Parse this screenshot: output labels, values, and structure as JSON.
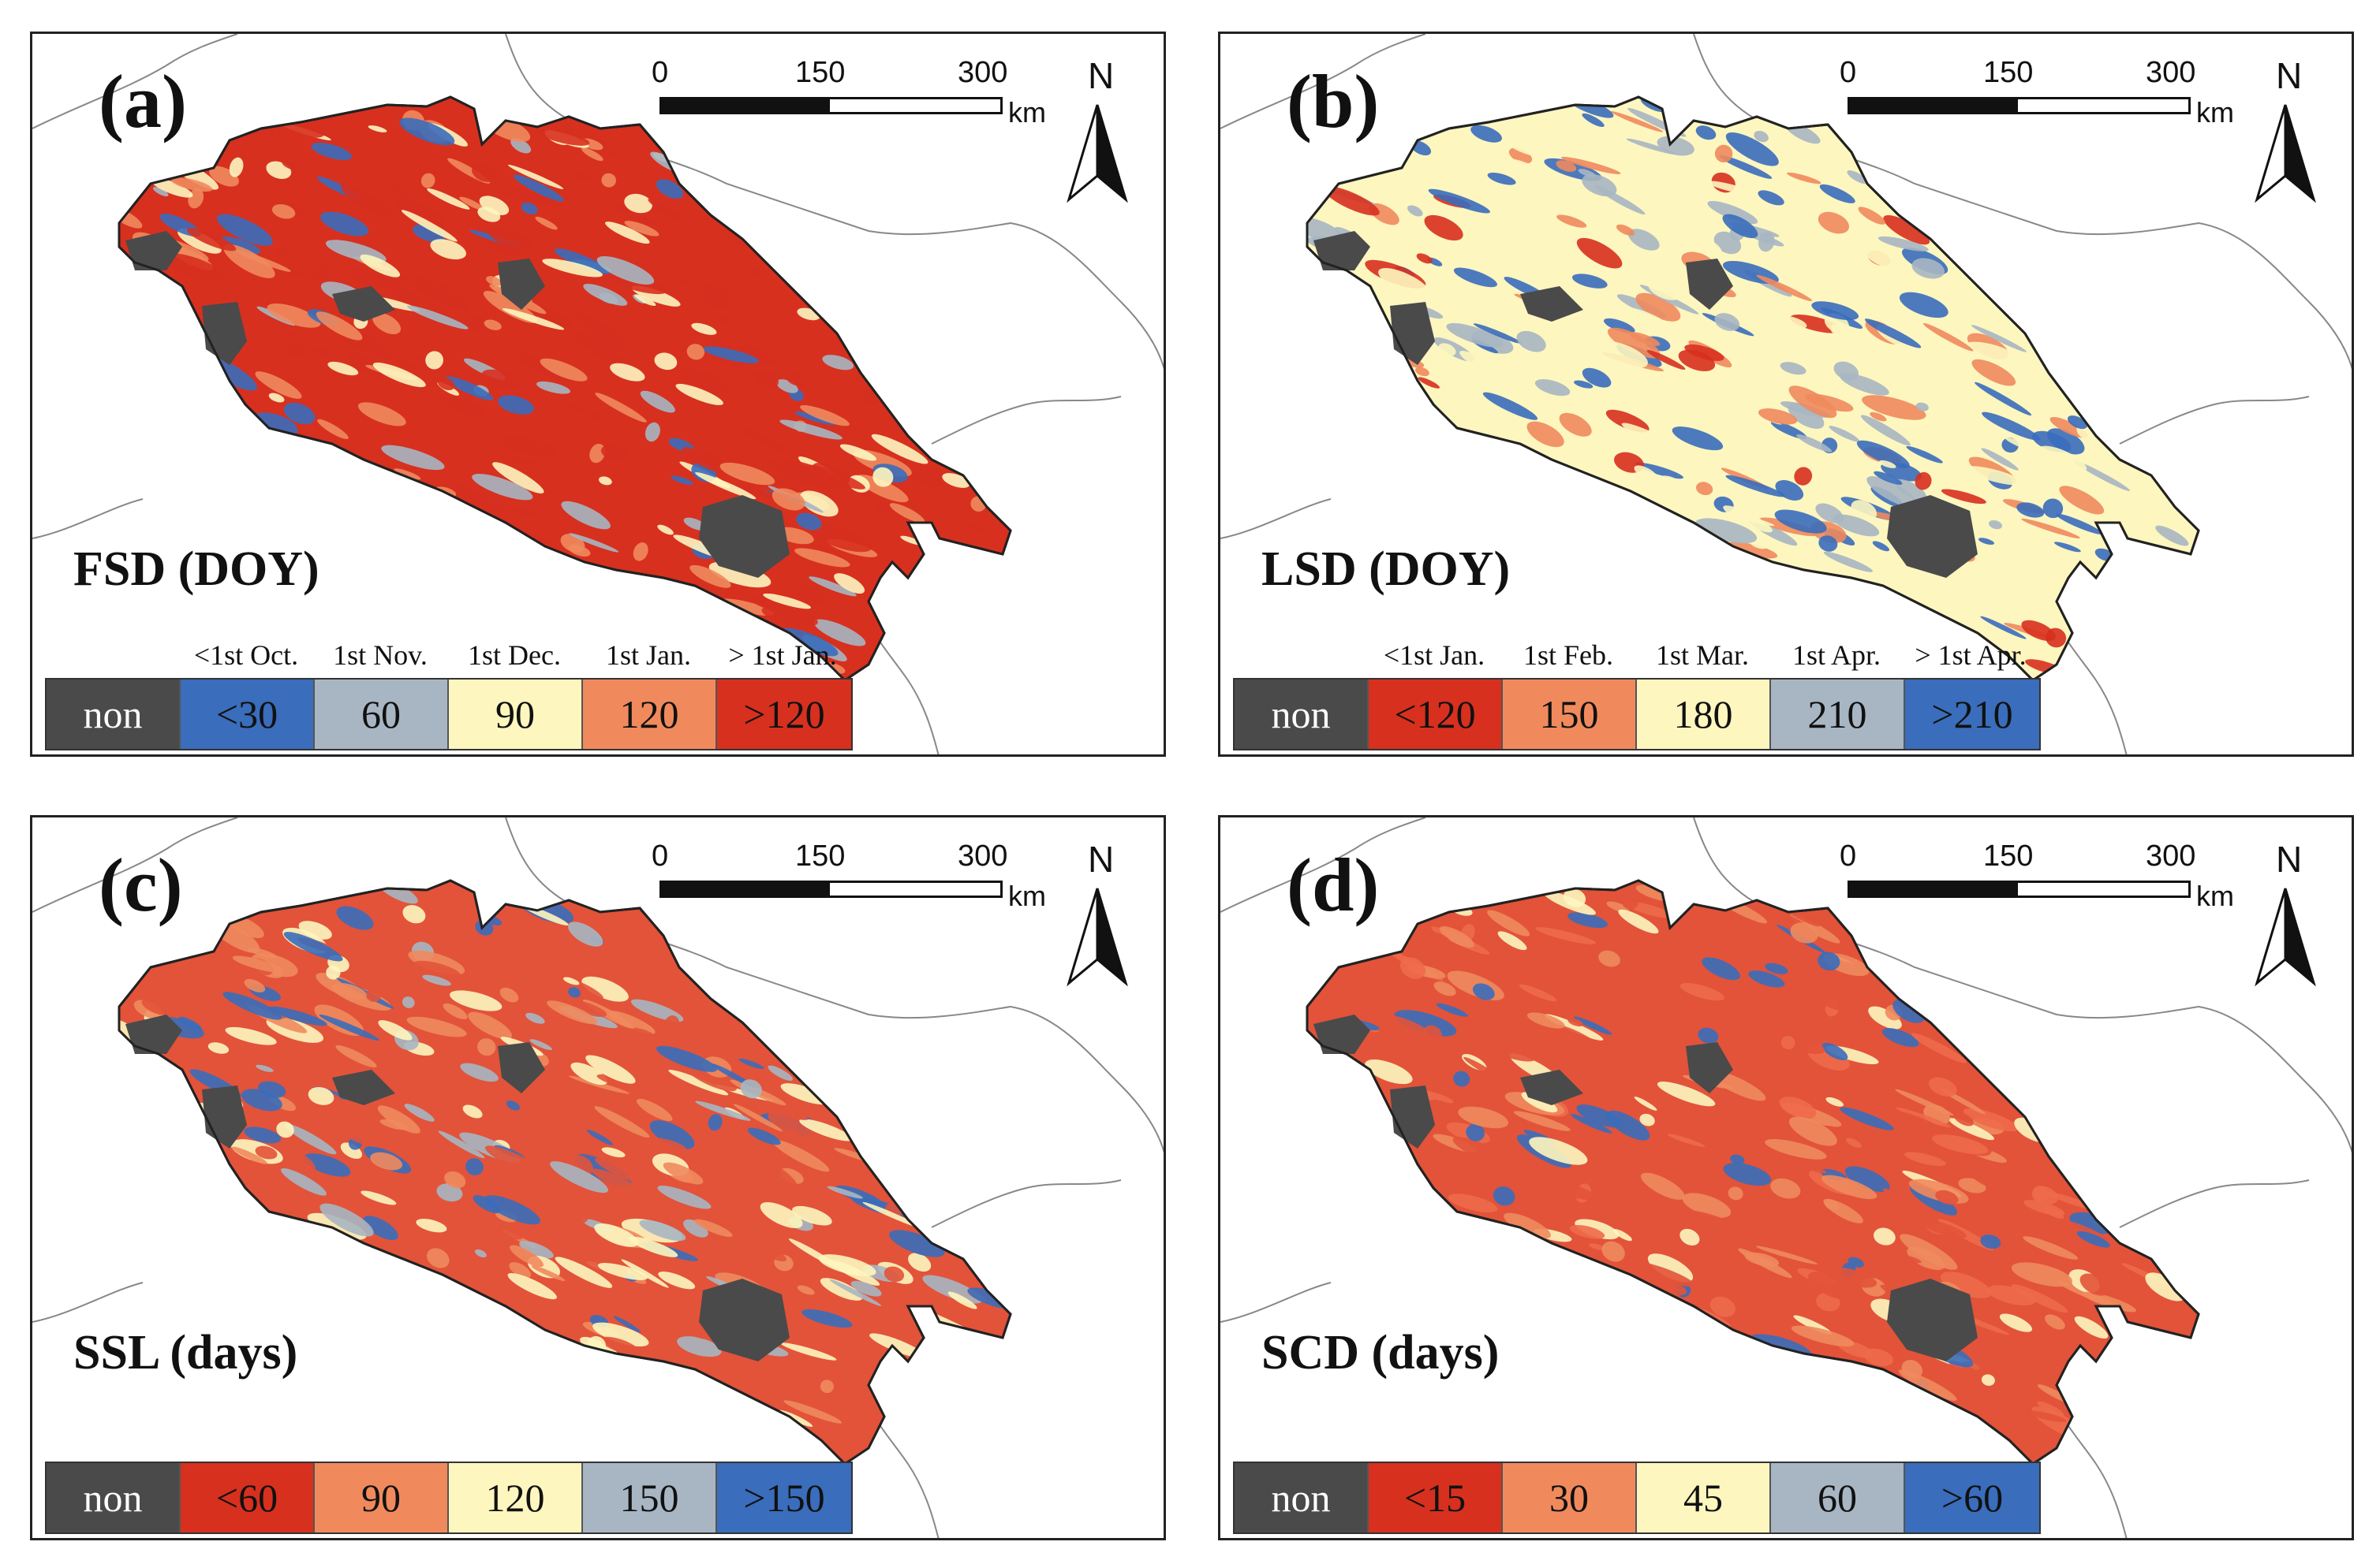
{
  "colors": {
    "non": "#4a4a4a",
    "red": "#d7301f",
    "orange": "#f08a5d",
    "yellow": "#fdf6bf",
    "grey": "#a7b6c2",
    "blue": "#3a6dbb",
    "boundary": "#888888"
  },
  "panels": [
    {
      "label": "(a)",
      "variable": "FSD (DOY)",
      "scale": {
        "ticks": [
          "0",
          "150",
          "300"
        ],
        "unit": "km"
      },
      "north": "N",
      "legend": {
        "classes": [
          "non",
          "<30",
          "60",
          "90",
          "120",
          ">120"
        ],
        "colors": [
          "#4a4a4a",
          "#3a6dbb",
          "#a7b6c2",
          "#fdf6bf",
          "#f08a5d",
          "#d7301f"
        ],
        "dates": [
          "<1st Oct.",
          "1st Nov.",
          "1st Dec.",
          "1st Jan.",
          "> 1st Jan."
        ]
      },
      "dominant": [
        "#d7301f",
        "#f08a5d",
        "#fdf6bf",
        "#a7b6c2",
        "#3a6dbb"
      ]
    },
    {
      "label": "(b)",
      "variable": "LSD (DOY)",
      "scale": {
        "ticks": [
          "0",
          "150",
          "300"
        ],
        "unit": "km"
      },
      "north": "N",
      "legend": {
        "classes": [
          "non",
          "<120",
          "150",
          "180",
          "210",
          ">210"
        ],
        "colors": [
          "#4a4a4a",
          "#d7301f",
          "#f08a5d",
          "#fdf6bf",
          "#a7b6c2",
          "#3a6dbb"
        ],
        "dates": [
          "<1st Jan.",
          "1st Feb.",
          "1st Mar.",
          "1st Apr.",
          "> 1st Apr."
        ]
      },
      "dominant": [
        "#fdf6bf",
        "#3a6dbb",
        "#a7b6c2",
        "#f08a5d",
        "#d7301f"
      ]
    },
    {
      "label": "(c)",
      "variable": "SSL (days)",
      "scale": {
        "ticks": [
          "0",
          "150",
          "300"
        ],
        "unit": "km"
      },
      "north": "N",
      "legend": {
        "classes": [
          "non",
          "<60",
          "90",
          "120",
          "150",
          ">150"
        ],
        "colors": [
          "#4a4a4a",
          "#d7301f",
          "#f08a5d",
          "#fdf6bf",
          "#a7b6c2",
          "#3a6dbb"
        ],
        "dates": []
      },
      "dominant": [
        "#e2533a",
        "#f08a5d",
        "#fdf6bf",
        "#a7b6c2",
        "#3a6dbb"
      ]
    },
    {
      "label": "(d)",
      "variable": "SCD (days)",
      "scale": {
        "ticks": [
          "0",
          "150",
          "300"
        ],
        "unit": "km"
      },
      "north": "N",
      "legend": {
        "classes": [
          "non",
          "<15",
          "30",
          "45",
          "60",
          ">60"
        ],
        "colors": [
          "#4a4a4a",
          "#d7301f",
          "#f08a5d",
          "#fdf6bf",
          "#a7b6c2",
          "#3a6dbb"
        ],
        "dates": []
      },
      "dominant": [
        "#e2533a",
        "#ee6a4a",
        "#f08a5d",
        "#fdf6bf",
        "#3a6dbb"
      ]
    }
  ]
}
